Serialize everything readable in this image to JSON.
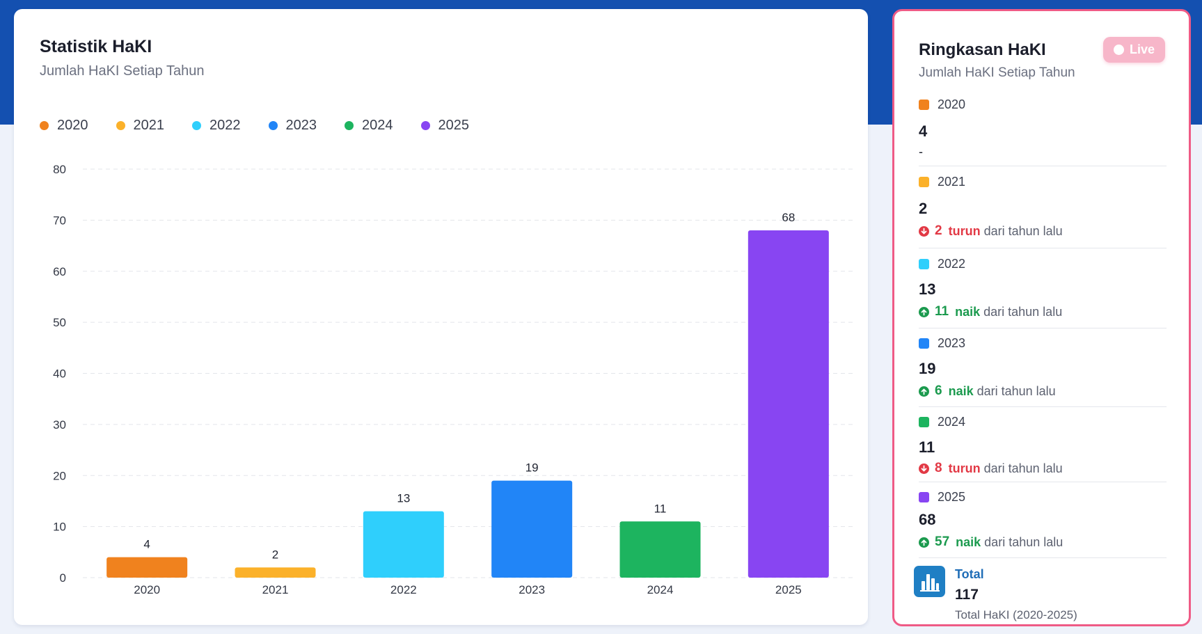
{
  "statistik": {
    "title": "Statistik HaKI",
    "subtitle": "Jumlah HaKI Setiap Tahun"
  },
  "chart_data": {
    "type": "bar",
    "categories": [
      "2020",
      "2021",
      "2022",
      "2023",
      "2024",
      "2025"
    ],
    "values": [
      4,
      2,
      13,
      19,
      11,
      68
    ],
    "colors": [
      "#f0821e",
      "#fbb12a",
      "#2fcffc",
      "#2185f7",
      "#1db45f",
      "#8845f2"
    ],
    "legend": [
      "2020",
      "2021",
      "2022",
      "2023",
      "2024",
      "2025"
    ],
    "y_ticks": [
      0,
      10,
      20,
      30,
      40,
      50,
      60,
      70,
      80
    ],
    "ylim": [
      0,
      80
    ],
    "grid": true,
    "legend_position": "top-left",
    "data_labels": true
  },
  "summary": {
    "title": "Ringkasan HaKI",
    "subtitle": "Jumlah HaKI Setiap Tahun",
    "live_label": "Live",
    "items": [
      {
        "year": "2020",
        "count": "4",
        "change_text": "-",
        "direction": "none",
        "color": "#f0821e"
      },
      {
        "year": "2021",
        "count": "2",
        "change_value": "2",
        "change_word": "turun",
        "change_rest": "dari tahun lalu",
        "direction": "down",
        "color": "#fbb12a"
      },
      {
        "year": "2022",
        "count": "13",
        "change_value": "11",
        "change_word": "naik",
        "change_rest": "dari tahun lalu",
        "direction": "up",
        "color": "#2fcffc"
      },
      {
        "year": "2023",
        "count": "19",
        "change_value": "6",
        "change_word": "naik",
        "change_rest": "dari tahun lalu",
        "direction": "up",
        "color": "#2185f7"
      },
      {
        "year": "2024",
        "count": "11",
        "change_value": "8",
        "change_word": "turun",
        "change_rest": "dari tahun lalu",
        "direction": "down",
        "color": "#1db45f"
      },
      {
        "year": "2025",
        "count": "68",
        "change_value": "57",
        "change_word": "naik",
        "change_rest": "dari tahun lalu",
        "direction": "up",
        "color": "#8845f2"
      }
    ],
    "total": {
      "label": "Total",
      "value": "117",
      "caption": "Total HaKI (2020-2025)",
      "icon": "bar-chart-icon"
    }
  }
}
